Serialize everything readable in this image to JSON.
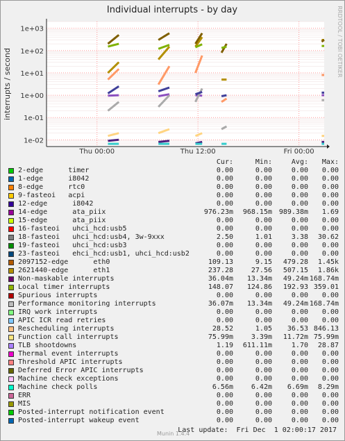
{
  "chart_data": {
    "type": "line",
    "title": "Individual interrupts - by day",
    "ylabel": "interrupts / second",
    "yscale": "log",
    "ylim": [
      0.005,
      2000
    ],
    "yticks": [
      "1e+03",
      "1e+02",
      "1e+01",
      "1e+00",
      "1e-01",
      "1e-02"
    ],
    "ytick_values": [
      1000,
      100,
      10,
      1,
      0.1,
      0.01
    ],
    "xticks": [
      "Thu 00:00",
      "Thu 12:00",
      "Fri 00:00"
    ],
    "xtick_hours": [
      6,
      18,
      30
    ],
    "xlim_hours": [
      0,
      33
    ],
    "grid": true,
    "series": [
      {
        "name": "14-edge ata_piix",
        "color": "#8c4fbf",
        "segments": [
          [
            [
              7.3,
              0.95
            ],
            [
              8.6,
              1.0
            ]
          ],
          [
            [
              13.3,
              0.9
            ],
            [
              14.6,
              1.1
            ]
          ],
          [
            [
              17.7,
              1.0
            ],
            [
              18.5,
              0.95
            ]
          ],
          [
            [
              32.7,
              1.0
            ],
            [
              33,
              1.0
            ]
          ]
        ]
      },
      {
        "name": "2097152-edge eth0",
        "color": "#b38f00",
        "segments": [
          [
            [
              7.3,
              10
            ],
            [
              8.6,
              30
            ]
          ],
          [
            [
              13.3,
              40
            ],
            [
              14.6,
              150
            ]
          ],
          [
            [
              17.7,
              150
            ],
            [
              18.5,
              400
            ]
          ],
          [
            [
              20.8,
              5
            ],
            [
              21.4,
              5
            ]
          ],
          [
            [
              32.7,
              300
            ],
            [
              33,
              300
            ]
          ]
        ]
      },
      {
        "name": "2621440-edge eth1",
        "color": "#7f5f00",
        "segments": [
          [
            [
              7.3,
              200
            ],
            [
              8.6,
              500
            ]
          ],
          [
            [
              13.3,
              300
            ],
            [
              14.6,
              600
            ]
          ],
          [
            [
              17.7,
              200
            ],
            [
              18.5,
              600
            ]
          ],
          [
            [
              20.8,
              80
            ],
            [
              21.4,
              200
            ]
          ],
          [
            [
              32.7,
              250
            ],
            [
              33,
              300
            ]
          ]
        ]
      },
      {
        "name": "Non-maskable interrupts",
        "color": "#4c1f7f",
        "segments": [
          [
            [
              7.3,
              0.009
            ],
            [
              8.6,
              0.01
            ]
          ],
          [
            [
              13.3,
              0.008
            ],
            [
              14.6,
              0.009
            ]
          ],
          [
            [
              17.7,
              0.007
            ],
            [
              18.5,
              0.008
            ]
          ],
          [
            [
              32.7,
              0.008
            ],
            [
              33,
              0.008
            ]
          ]
        ]
      },
      {
        "name": "Local timer interrupts",
        "color": "#7fb200",
        "segments": [
          [
            [
              7.3,
              150
            ],
            [
              8.6,
              200
            ]
          ],
          [
            [
              13.3,
              120
            ],
            [
              14.6,
              180
            ]
          ],
          [
            [
              17.7,
              140
            ],
            [
              18.5,
              190
            ]
          ],
          [
            [
              20.8,
              130
            ],
            [
              21.4,
              150
            ]
          ],
          [
            [
              32.7,
              160
            ],
            [
              33,
              160
            ]
          ]
        ]
      },
      {
        "name": "Performance monitoring interrupts",
        "color": "#aaaaaa",
        "segments": [
          [
            [
              7.3,
              0.2
            ],
            [
              8.6,
              0.5
            ]
          ],
          [
            [
              13.3,
              0.3
            ],
            [
              14.6,
              1
            ]
          ],
          [
            [
              17.7,
              0.5
            ],
            [
              18.5,
              2
            ]
          ],
          [
            [
              20.8,
              0.03
            ],
            [
              21.4,
              0.04
            ]
          ],
          [
            [
              32.7,
              0.6
            ],
            [
              33,
              0.6
            ]
          ]
        ]
      },
      {
        "name": "Rescheduling interrupts",
        "color": "#ff9966",
        "segments": [
          [
            [
              7.3,
              5
            ],
            [
              8.6,
              15
            ]
          ],
          [
            [
              13.3,
              3
            ],
            [
              14.6,
              20
            ]
          ],
          [
            [
              17.7,
              10
            ],
            [
              18.5,
              60
            ]
          ],
          [
            [
              20.8,
              0.5
            ],
            [
              21.4,
              0.7
            ]
          ],
          [
            [
              32.7,
              8
            ],
            [
              33,
              8
            ]
          ]
        ]
      },
      {
        "name": "Function call interrupts",
        "color": "#ffd480",
        "segments": [
          [
            [
              7.3,
              0.015
            ],
            [
              8.6,
              0.02
            ]
          ],
          [
            [
              13.3,
              0.02
            ],
            [
              14.6,
              0.03
            ]
          ],
          [
            [
              17.7,
              0.015
            ],
            [
              18.5,
              0.02
            ]
          ],
          [
            [
              32.7,
              0.015
            ],
            [
              33,
              0.015
            ]
          ]
        ]
      },
      {
        "name": "TLB shootdowns",
        "color": "#3f3f99",
        "segments": [
          [
            [
              7.3,
              1.2
            ],
            [
              8.6,
              2.5
            ]
          ],
          [
            [
              13.3,
              1.5
            ],
            [
              14.6,
              2.2
            ]
          ],
          [
            [
              17.7,
              1.1
            ],
            [
              18.5,
              1.4
            ]
          ],
          [
            [
              20.8,
              0.9
            ],
            [
              21.4,
              1.0
            ]
          ],
          [
            [
              32.7,
              1.3
            ],
            [
              33,
              1.3
            ]
          ]
        ]
      },
      {
        "name": "Machine check polls",
        "color": "#33cccc",
        "segments": [
          [
            [
              7.3,
              0.0066
            ],
            [
              8.6,
              0.0066
            ]
          ],
          [
            [
              13.3,
              0.0066
            ],
            [
              14.6,
              0.0066
            ]
          ],
          [
            [
              17.7,
              0.0066
            ],
            [
              18.5,
              0.0066
            ]
          ],
          [
            [
              20.8,
              0.0066
            ],
            [
              21.4,
              0.0066
            ]
          ],
          [
            [
              32.7,
              0.0066
            ],
            [
              33,
              0.0066
            ]
          ]
        ]
      }
    ]
  },
  "side_credit": "RRDTOOL / TOBI OETIKER",
  "legend": {
    "headers": {
      "cur": "Cur:",
      "min": "Min:",
      "avg": "Avg:",
      "max": "Max:"
    },
    "rows": [
      {
        "label": "2-edge      timer",
        "color": "#00cc00",
        "cur": "0.00",
        "min": "0.00",
        "avg": "0.00",
        "max": "0.00"
      },
      {
        "label": "1-edge      i8042",
        "color": "#0066b3",
        "cur": "0.00",
        "min": "0.00",
        "avg": "0.00",
        "max": "0.00"
      },
      {
        "label": "8-edge      rtc0",
        "color": "#ff8000",
        "cur": "0.00",
        "min": "0.00",
        "avg": "0.00",
        "max": "0.00"
      },
      {
        "label": "9-fasteoi   acpi",
        "color": "#ffcc00",
        "cur": "0.00",
        "min": "0.00",
        "avg": "0.00",
        "max": "0.00"
      },
      {
        "label": "12-edge      i8042",
        "color": "#330099",
        "cur": "0.00",
        "min": "0.00",
        "avg": "0.00",
        "max": "0.00"
      },
      {
        "label": "14-edge      ata_piix",
        "color": "#990099",
        "cur": "976.23m",
        "min": "968.15m",
        "avg": "989.38m",
        "max": "1.69"
      },
      {
        "label": "15-edge      ata_piix",
        "color": "#ccff00",
        "cur": "0.00",
        "min": "0.00",
        "avg": "0.00",
        "max": "0.00"
      },
      {
        "label": "16-fasteoi   uhci_hcd:usb5",
        "color": "#ff0000",
        "cur": "0.00",
        "min": "0.00",
        "avg": "0.00",
        "max": "0.00"
      },
      {
        "label": "18-fasteoi   uhci_hcd:usb4, 3w-9xxx",
        "color": "#808080",
        "cur": "2.50",
        "min": "1.01",
        "avg": "3.38",
        "max": "30.62"
      },
      {
        "label": "19-fasteoi   uhci_hcd:usb3",
        "color": "#008f00",
        "cur": "0.00",
        "min": "0.00",
        "avg": "0.00",
        "max": "0.00"
      },
      {
        "label": "23-fasteoi   ehci_hcd:usb1, uhci_hcd:usb2",
        "color": "#00487d",
        "cur": "0.00",
        "min": "0.00",
        "avg": "0.00",
        "max": "0.00"
      },
      {
        "label": "2097152-edge      eth0",
        "color": "#b35a00",
        "cur": "109.13",
        "min": "9.15",
        "avg": "479.28",
        "max": "1.45k"
      },
      {
        "label": "2621440-edge      eth1",
        "color": "#b38f00",
        "cur": "237.28",
        "min": "27.56",
        "avg": "507.15",
        "max": "1.86k"
      },
      {
        "label": "Non-maskable interrupts",
        "color": "#6b006b",
        "cur": "36.04m",
        "min": "13.34m",
        "avg": "49.24m",
        "max": "168.74m"
      },
      {
        "label": "Local timer interrupts",
        "color": "#8fb300",
        "cur": "148.07",
        "min": "124.86",
        "avg": "192.93",
        "max": "359.01"
      },
      {
        "label": "Spurious interrupts",
        "color": "#b30000",
        "cur": "0.00",
        "min": "0.00",
        "avg": "0.00",
        "max": "0.00"
      },
      {
        "label": "Performance monitoring interrupts",
        "color": "#bebebe",
        "cur": "36.07m",
        "min": "13.34m",
        "avg": "49.24m",
        "max": "168.74m"
      },
      {
        "label": "IRQ work interrupts",
        "color": "#80ff80",
        "cur": "0.00",
        "min": "0.00",
        "avg": "0.00",
        "max": "0.00"
      },
      {
        "label": "APIC ICR read retries",
        "color": "#80c9ff",
        "cur": "0.00",
        "min": "0.00",
        "avg": "0.00",
        "max": "0.00"
      },
      {
        "label": "Rescheduling interrupts",
        "color": "#ffc080",
        "cur": "28.52",
        "min": "1.05",
        "avg": "36.53",
        "max": "846.13"
      },
      {
        "label": "Function call interrupts",
        "color": "#ffe680",
        "cur": "75.99m",
        "min": "3.39m",
        "avg": "11.72m",
        "max": "75.99m"
      },
      {
        "label": "TLB shootdowns",
        "color": "#aa80ff",
        "cur": "1.19",
        "min": "611.11m",
        "avg": "1.70",
        "max": "28.87"
      },
      {
        "label": "Thermal event interrupts",
        "color": "#ee00cc",
        "cur": "0.00",
        "min": "0.00",
        "avg": "0.00",
        "max": "0.00"
      },
      {
        "label": "Threshold APIC interrupts",
        "color": "#ff8080",
        "cur": "0.00",
        "min": "0.00",
        "avg": "0.00",
        "max": "0.00"
      },
      {
        "label": "Deferred Error APIC interrupts",
        "color": "#666600",
        "cur": "0.00",
        "min": "0.00",
        "avg": "0.00",
        "max": "0.00"
      },
      {
        "label": "Machine check exceptions",
        "color": "#ffbfff",
        "cur": "0.00",
        "min": "0.00",
        "avg": "0.00",
        "max": "0.00"
      },
      {
        "label": "Machine check polls",
        "color": "#00ffcc",
        "cur": "6.56m",
        "min": "6.42m",
        "avg": "6.69m",
        "max": "8.29m"
      },
      {
        "label": "ERR",
        "color": "#cc6699",
        "cur": "0.00",
        "min": "0.00",
        "avg": "0.00",
        "max": "0.00"
      },
      {
        "label": "MIS",
        "color": "#999900",
        "cur": "0.00",
        "min": "0.00",
        "avg": "0.00",
        "max": "0.00"
      },
      {
        "label": "Posted-interrupt notification event",
        "color": "#00cc00",
        "cur": "0.00",
        "min": "0.00",
        "avg": "0.00",
        "max": "0.00"
      },
      {
        "label": "Posted-interrupt wakeup event",
        "color": "#0066b3",
        "cur": "0.00",
        "min": "0.00",
        "avg": "0.00",
        "max": "0.00"
      }
    ]
  },
  "footer": {
    "last_update": "Last update:  Fri Dec  1 02:00:17 2017",
    "munin_version": "Munin 1.4.4"
  }
}
